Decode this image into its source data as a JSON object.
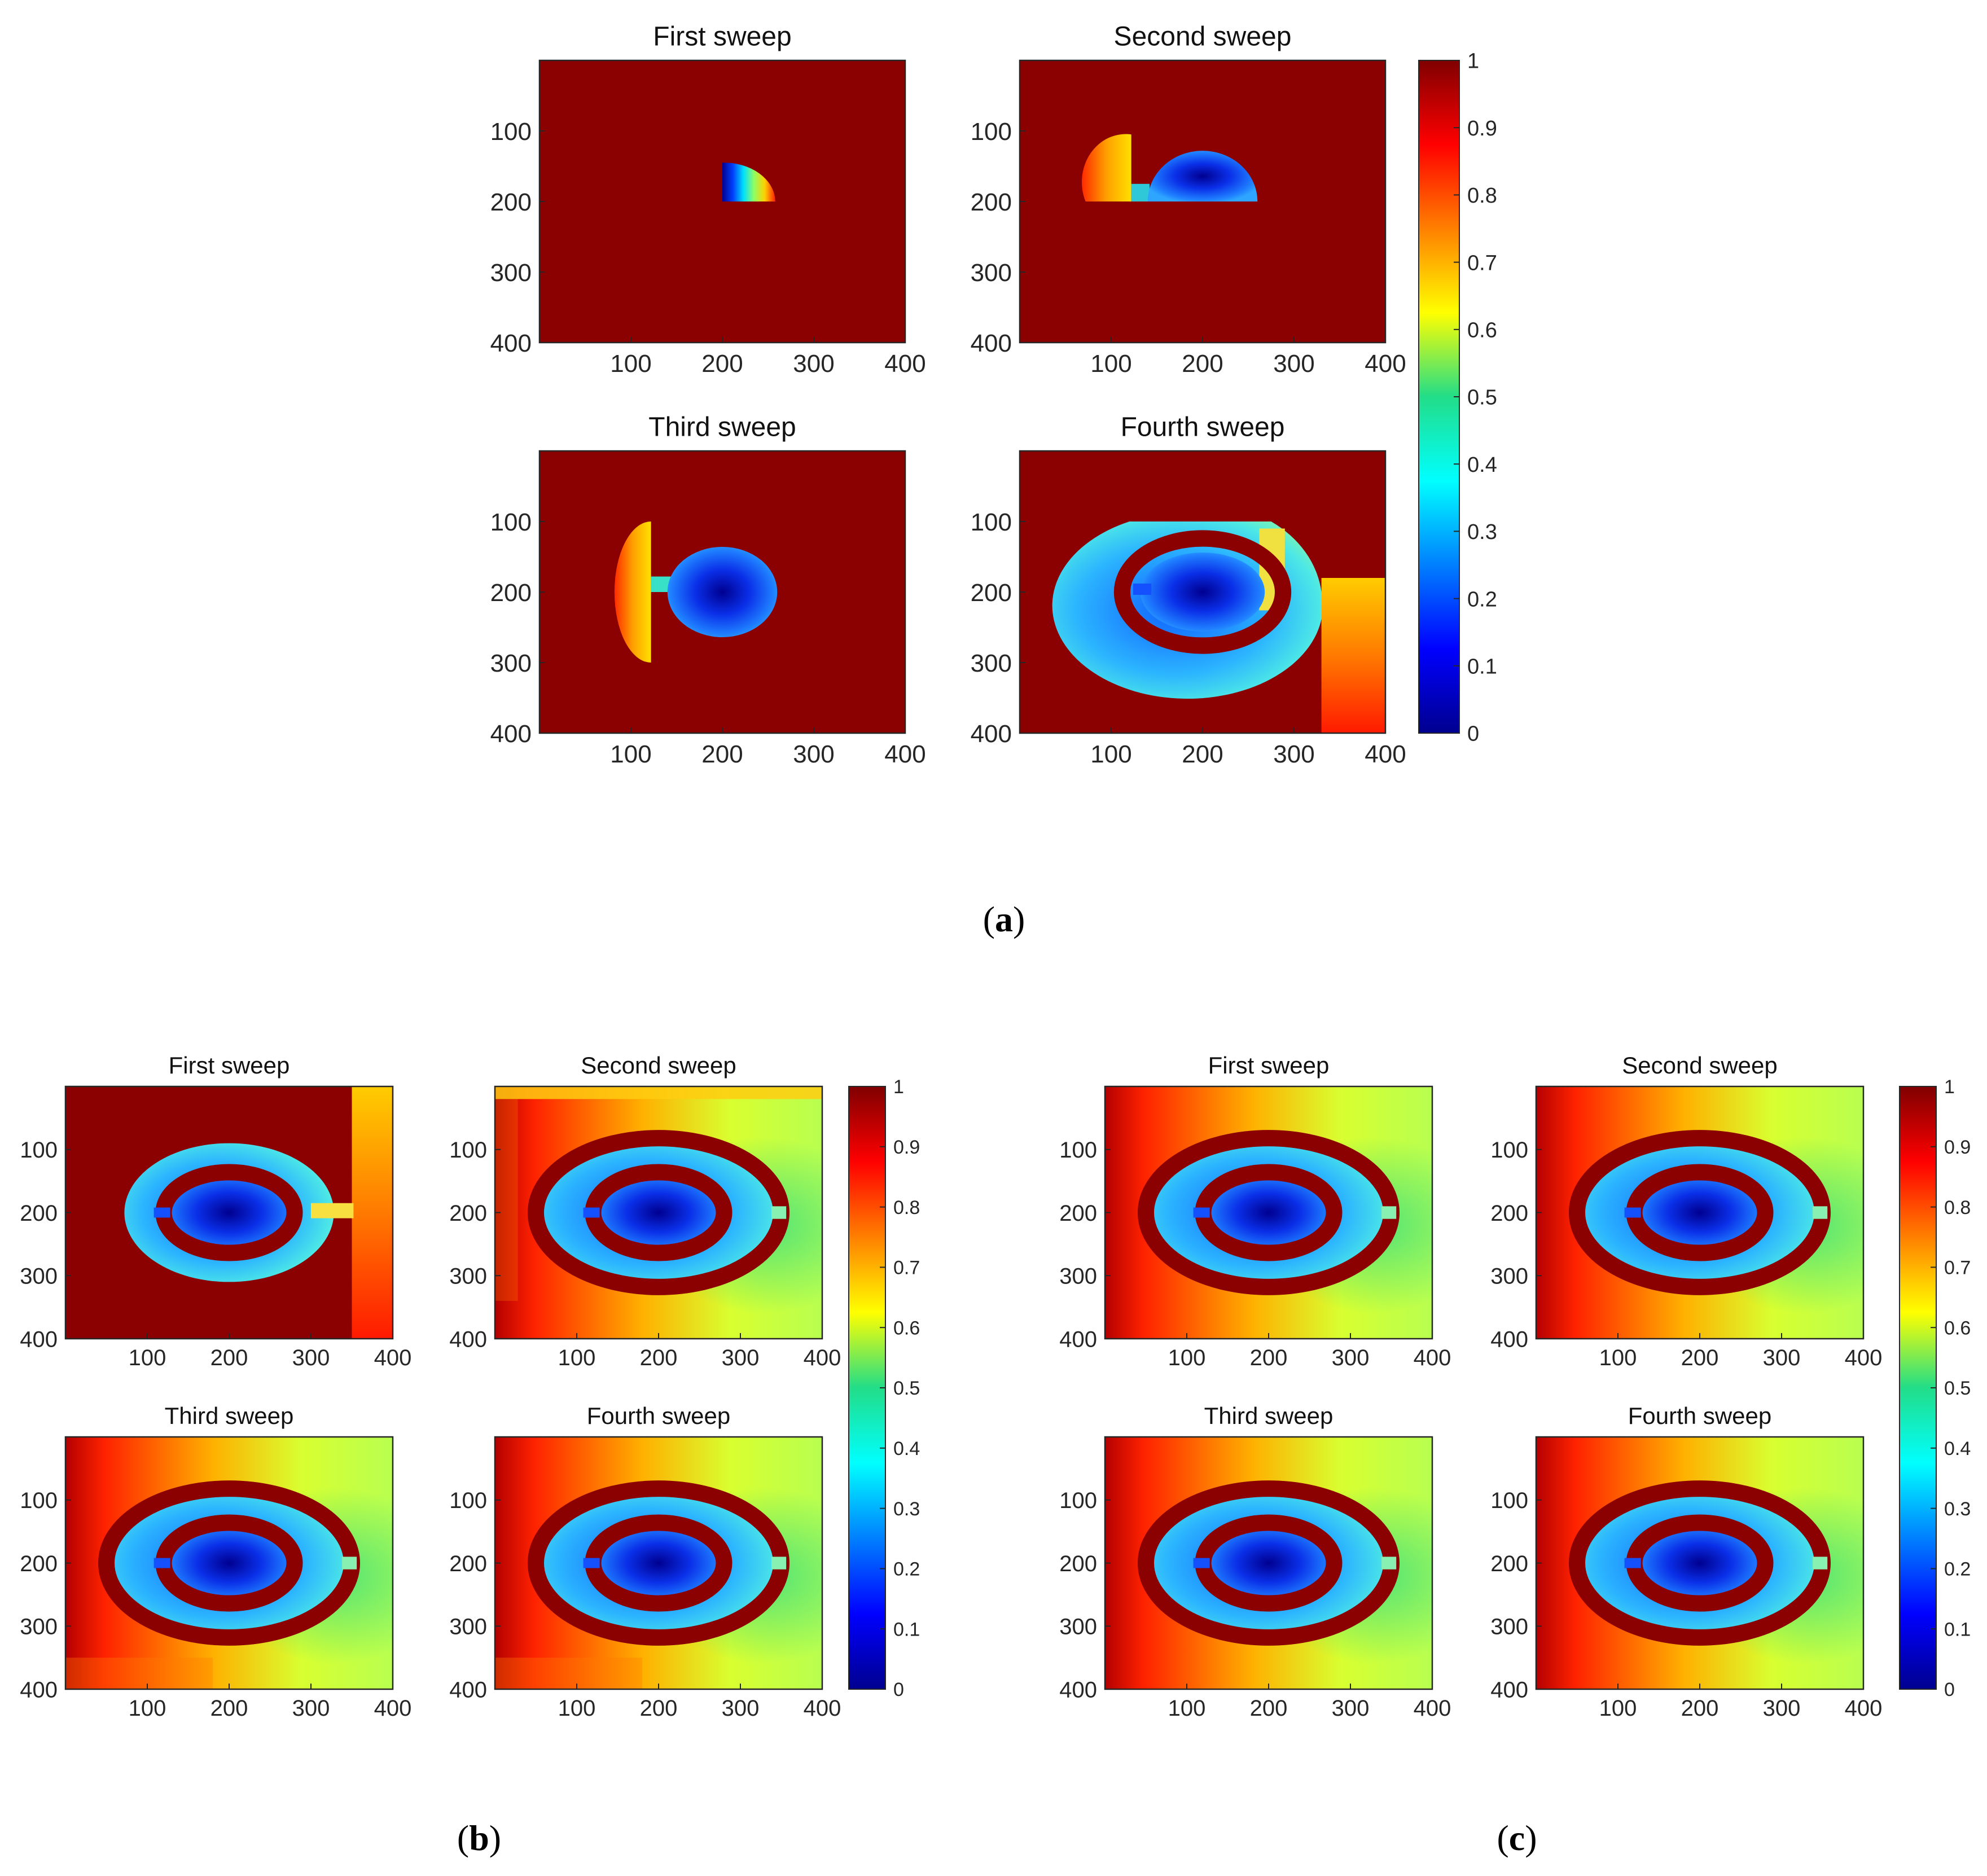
{
  "figure": {
    "labels": {
      "a": {
        "open": "(",
        "letter": "a",
        "close": ")"
      },
      "b": {
        "open": "(",
        "letter": "b",
        "close": ")"
      },
      "c": {
        "open": "(",
        "letter": "c",
        "close": ")"
      }
    }
  },
  "colors": {
    "background": "#8b0000",
    "axis": "#262626",
    "ring": "#8b0000"
  },
  "chart_data": [
    {
      "type": "heatmap",
      "group": "a",
      "colormap": "jet",
      "clim": [
        0,
        1
      ],
      "colorbar_ticks": [
        "0",
        "0.1",
        "0.2",
        "0.3",
        "0.4",
        "0.5",
        "0.6",
        "0.7",
        "0.8",
        "0.9",
        "1"
      ],
      "x_ticks": [
        "100",
        "200",
        "300",
        "400"
      ],
      "y_ticks": [
        "100",
        "200",
        "300",
        "400"
      ],
      "xlim": [
        0,
        400
      ],
      "ylim": [
        0,
        400
      ],
      "panels": [
        {
          "title": "First sweep",
          "visited": "quarter-disc near (200,200)",
          "background": 1,
          "min": 0
        },
        {
          "title": "Second sweep",
          "visited": "upper half ellipse and quarter sector",
          "background": 1,
          "min": 0
        },
        {
          "title": "Third sweep",
          "visited": "inner ellipse and left sector",
          "background": 1,
          "min": 0
        },
        {
          "title": "Fourth sweep",
          "visited": "most of outer ellipse and right channel",
          "background": 1,
          "min": 0
        }
      ]
    },
    {
      "type": "heatmap",
      "group": "b",
      "colormap": "jet",
      "clim": [
        0,
        1
      ],
      "colorbar_ticks": [
        "0",
        "0.1",
        "0.2",
        "0.3",
        "0.4",
        "0.5",
        "0.6",
        "0.7",
        "0.8",
        "0.9",
        "1"
      ],
      "x_ticks": [
        "100",
        "200",
        "300",
        "400"
      ],
      "y_ticks": [
        "100",
        "200",
        "300",
        "400"
      ],
      "xlim": [
        0,
        400
      ],
      "ylim": [
        0,
        400
      ],
      "panels": [
        {
          "title": "First sweep",
          "visited": "outer ellipse and right channel"
        },
        {
          "title": "Second sweep",
          "visited": "nearly whole domain"
        },
        {
          "title": "Third sweep",
          "visited": "whole domain"
        },
        {
          "title": "Fourth sweep",
          "visited": "whole domain"
        }
      ]
    },
    {
      "type": "heatmap",
      "group": "c",
      "colormap": "jet",
      "clim": [
        0,
        1
      ],
      "colorbar_ticks": [
        "0",
        "0.1",
        "0.2",
        "0.3",
        "0.4",
        "0.5",
        "0.6",
        "0.7",
        "0.8",
        "0.9",
        "1"
      ],
      "x_ticks": [
        "100",
        "200",
        "300",
        "400"
      ],
      "y_ticks": [
        "100",
        "200",
        "300",
        "400"
      ],
      "xlim": [
        0,
        400
      ],
      "ylim": [
        0,
        400
      ],
      "panels": [
        {
          "title": "First sweep",
          "visited": "whole domain"
        },
        {
          "title": "Second sweep",
          "visited": "whole domain"
        },
        {
          "title": "Third sweep",
          "visited": "whole domain"
        },
        {
          "title": "Fourth sweep",
          "visited": "whole domain"
        }
      ]
    }
  ]
}
